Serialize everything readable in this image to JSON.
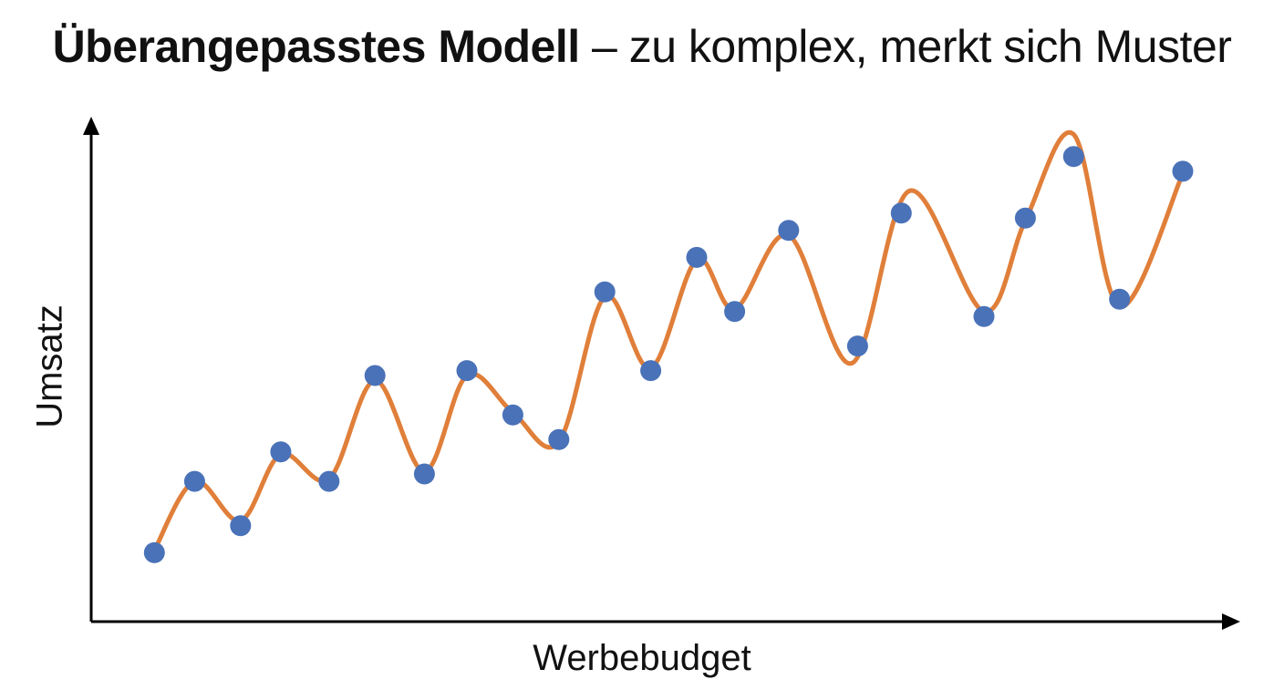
{
  "title": {
    "bold": "Überangepasstes Modell",
    "rest": " – zu komplex, merkt sich Muster"
  },
  "colors": {
    "points": "#4a72b8",
    "curve": "#e07f3a",
    "axis": "#000000",
    "text": "#111111"
  },
  "chart_data": {
    "type": "scatter",
    "xlabel": "Werbebudget",
    "ylabel": "Umsatz",
    "axis_ticks": "none",
    "grid": false,
    "legend": "none",
    "xlim": [
      0,
      100
    ],
    "ylim": [
      0,
      100
    ],
    "points": [
      {
        "x": 5.5,
        "y": 14.0
      },
      {
        "x": 9.0,
        "y": 28.5
      },
      {
        "x": 13.0,
        "y": 19.5
      },
      {
        "x": 16.5,
        "y": 34.5
      },
      {
        "x": 20.7,
        "y": 28.5
      },
      {
        "x": 24.7,
        "y": 50.0
      },
      {
        "x": 29.0,
        "y": 30.0
      },
      {
        "x": 32.7,
        "y": 51.0
      },
      {
        "x": 36.7,
        "y": 42.0
      },
      {
        "x": 40.7,
        "y": 37.0
      },
      {
        "x": 44.7,
        "y": 67.0
      },
      {
        "x": 48.7,
        "y": 51.0
      },
      {
        "x": 52.7,
        "y": 74.0
      },
      {
        "x": 56.0,
        "y": 63.0
      },
      {
        "x": 60.7,
        "y": 79.5
      },
      {
        "x": 66.7,
        "y": 56.0
      },
      {
        "x": 70.5,
        "y": 83.0
      },
      {
        "x": 77.7,
        "y": 62.0
      },
      {
        "x": 81.3,
        "y": 82.0
      },
      {
        "x": 85.5,
        "y": 94.5
      },
      {
        "x": 89.5,
        "y": 65.5
      },
      {
        "x": 95.0,
        "y": 91.5
      }
    ],
    "fit_curve": {
      "name": "",
      "x": [
        5.5,
        9.0,
        13.0,
        16.5,
        20.7,
        24.7,
        29.0,
        32.7,
        36.7,
        40.7,
        44.7,
        48.7,
        52.7,
        56.0,
        60.7,
        66.2,
        71.2,
        77.7,
        81.3,
        85.5,
        89.5,
        95.0
      ],
      "y": [
        14.5,
        28.5,
        20.5,
        34.0,
        29.0,
        49.0,
        30.5,
        50.0,
        42.5,
        36.5,
        66.0,
        51.5,
        73.5,
        63.5,
        78.5,
        52.5,
        87.5,
        63.0,
        81.5,
        99.0,
        64.0,
        91.0
      ]
    }
  }
}
